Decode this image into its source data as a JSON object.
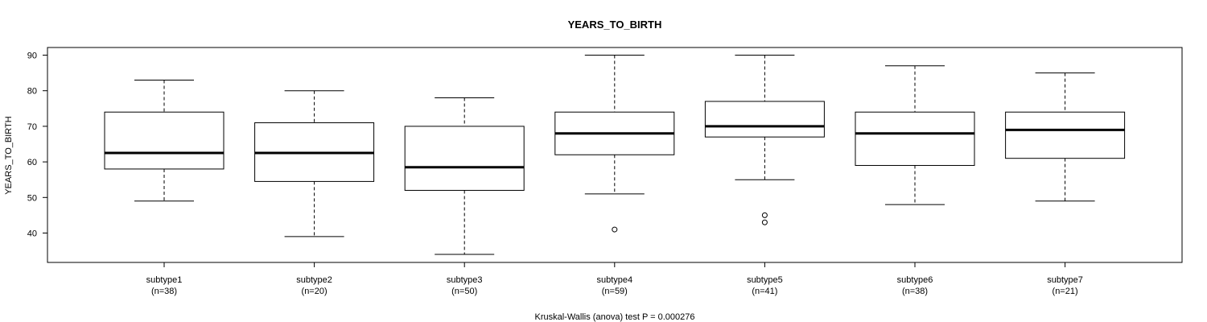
{
  "chart_data": {
    "type": "boxplot",
    "title": "YEARS_TO_BIRTH",
    "ylabel": "YEARS_TO_BIRTH",
    "xlabel": "",
    "footer": "Kruskal-Wallis (anova) test P = 0.000276",
    "ylim": [
      32,
      92
    ],
    "yticks": [
      40,
      50,
      60,
      70,
      80,
      90
    ],
    "grid": false,
    "groups": [
      {
        "name": "subtype1",
        "n_label": "(n=38)",
        "whisker_low": 49,
        "q1": 58,
        "median": 62.5,
        "q3": 74,
        "whisker_high": 83,
        "outliers": []
      },
      {
        "name": "subtype2",
        "n_label": "(n=20)",
        "whisker_low": 39,
        "q1": 54.5,
        "median": 62.5,
        "q3": 71,
        "whisker_high": 80,
        "outliers": []
      },
      {
        "name": "subtype3",
        "n_label": "(n=50)",
        "whisker_low": 34,
        "q1": 52,
        "median": 58.5,
        "q3": 70,
        "whisker_high": 78,
        "outliers": []
      },
      {
        "name": "subtype4",
        "n_label": "(n=59)",
        "whisker_low": 51,
        "q1": 62,
        "median": 68,
        "q3": 74,
        "whisker_high": 90,
        "outliers": [
          41
        ]
      },
      {
        "name": "subtype5",
        "n_label": "(n=41)",
        "whisker_low": 55,
        "q1": 67,
        "median": 70,
        "q3": 77,
        "whisker_high": 90,
        "outliers": [
          45,
          43
        ]
      },
      {
        "name": "subtype6",
        "n_label": "(n=38)",
        "whisker_low": 48,
        "q1": 59,
        "median": 68,
        "q3": 74,
        "whisker_high": 87,
        "outliers": []
      },
      {
        "name": "subtype7",
        "n_label": "(n=21)",
        "whisker_low": 49,
        "q1": 61,
        "median": 69,
        "q3": 74,
        "whisker_high": 85,
        "outliers": []
      }
    ]
  }
}
